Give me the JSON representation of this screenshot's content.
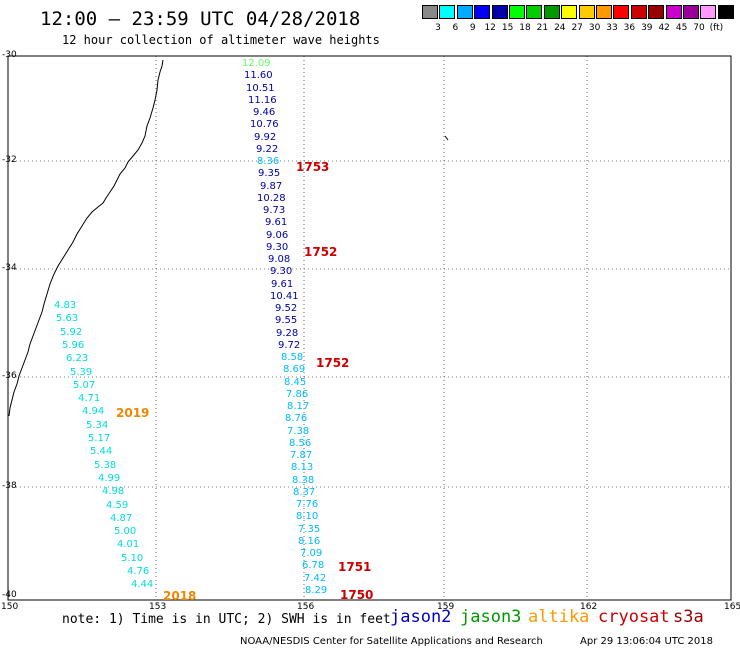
{
  "header": {
    "title": "12:00 – 23:59 UTC 04/28/2018",
    "subtitle": "12 hour collection of altimeter wave heights"
  },
  "legend": {
    "colors": [
      "#888888",
      "#00ffff",
      "#00aaff",
      "#0000ff",
      "#0000aa",
      "#00ff00",
      "#00cc00",
      "#009900",
      "#ffff00",
      "#ffcc00",
      "#ff9900",
      "#ff0000",
      "#cc0000",
      "#990000",
      "#cc00cc",
      "#990099",
      "#ff99ff",
      "#000000"
    ],
    "labels": [
      "3",
      "6",
      "9",
      "12",
      "15",
      "18",
      "21",
      "24",
      "27",
      "30",
      "33",
      "36",
      "39",
      "42",
      "45",
      "70",
      "(ft)"
    ]
  },
  "axes": {
    "lat_labels": [
      "-30",
      "-32",
      "-34",
      "-36",
      "-38",
      "-40"
    ],
    "lon_labels": [
      "150",
      "153",
      "156",
      "159",
      "162",
      "165"
    ]
  },
  "tracks": [
    {
      "satellite": "jason2/jason3 east track",
      "points": [
        {
          "v": "12.09",
          "c": "#66ff66"
        },
        {
          "v": "11.60",
          "c": "#0000aa"
        },
        {
          "v": "10.51",
          "c": "#0000aa"
        },
        {
          "v": "11.16",
          "c": "#0000aa"
        },
        {
          "v": "9.46",
          "c": "#0000aa"
        },
        {
          "v": "10.76",
          "c": "#0000aa"
        },
        {
          "v": "9.92",
          "c": "#0000aa"
        },
        {
          "v": "9.22",
          "c": "#0000aa"
        },
        {
          "v": "8.36",
          "c": "#00bbff"
        },
        {
          "v": "9.35",
          "c": "#0000aa"
        },
        {
          "v": "9.87",
          "c": "#0000aa"
        },
        {
          "v": "10.28",
          "c": "#0000aa"
        },
        {
          "v": "9.73",
          "c": "#0000aa"
        },
        {
          "v": "9.61",
          "c": "#0000aa"
        },
        {
          "v": "9.06",
          "c": "#0000aa"
        },
        {
          "v": "9.30",
          "c": "#0000aa"
        },
        {
          "v": "9.08",
          "c": "#0000aa"
        },
        {
          "v": "9.30",
          "c": "#0000aa"
        },
        {
          "v": "9.61",
          "c": "#0000aa"
        },
        {
          "v": "10.41",
          "c": "#0000aa"
        },
        {
          "v": "9.52",
          "c": "#0000aa"
        },
        {
          "v": "9.55",
          "c": "#0000aa"
        },
        {
          "v": "9.28",
          "c": "#0000aa"
        },
        {
          "v": "9.72",
          "c": "#0000aa"
        },
        {
          "v": "8.58",
          "c": "#00bbff"
        },
        {
          "v": "8.69",
          "c": "#00bbff"
        },
        {
          "v": "8.45",
          "c": "#00bbff"
        },
        {
          "v": "7.86",
          "c": "#00bbff"
        },
        {
          "v": "8.17",
          "c": "#00bbff"
        },
        {
          "v": "8.76",
          "c": "#00bbff"
        },
        {
          "v": "7.38",
          "c": "#00bbff"
        },
        {
          "v": "8.56",
          "c": "#00bbff"
        },
        {
          "v": "7.87",
          "c": "#00bbff"
        },
        {
          "v": "8.13",
          "c": "#00bbff"
        },
        {
          "v": "8.38",
          "c": "#00bbff"
        },
        {
          "v": "8.37",
          "c": "#00bbff"
        },
        {
          "v": "7.76",
          "c": "#00bbff"
        },
        {
          "v": "8.10",
          "c": "#00bbff"
        },
        {
          "v": "7.35",
          "c": "#00bbff"
        },
        {
          "v": "8.16",
          "c": "#00bbff"
        },
        {
          "v": "7.09",
          "c": "#00bbff"
        },
        {
          "v": "6.78",
          "c": "#00bbff"
        },
        {
          "v": "7.42",
          "c": "#00bbff"
        },
        {
          "v": "8.29",
          "c": "#00bbff"
        }
      ]
    },
    {
      "satellite": "altika west track",
      "points": [
        {
          "v": "4.83",
          "c": "#00dddd"
        },
        {
          "v": "5.63",
          "c": "#00dddd"
        },
        {
          "v": "5.92",
          "c": "#00dddd"
        },
        {
          "v": "5.96",
          "c": "#00dddd"
        },
        {
          "v": "6.23",
          "c": "#00dddd"
        },
        {
          "v": "5.39",
          "c": "#00dddd"
        },
        {
          "v": "5.07",
          "c": "#00dddd"
        },
        {
          "v": "4.71",
          "c": "#00dddd"
        },
        {
          "v": "4.94",
          "c": "#00dddd"
        },
        {
          "v": "5.34",
          "c": "#00dddd"
        },
        {
          "v": "5.17",
          "c": "#00dddd"
        },
        {
          "v": "5.44",
          "c": "#00dddd"
        },
        {
          "v": "5.38",
          "c": "#00dddd"
        },
        {
          "v": "4.99",
          "c": "#00dddd"
        },
        {
          "v": "4.98",
          "c": "#00dddd"
        },
        {
          "v": "4.59",
          "c": "#00dddd"
        },
        {
          "v": "4.87",
          "c": "#00dddd"
        },
        {
          "v": "5.00",
          "c": "#00dddd"
        },
        {
          "v": "4.01",
          "c": "#00dddd"
        },
        {
          "v": "5.10",
          "c": "#00dddd"
        },
        {
          "v": "4.76",
          "c": "#00dddd"
        },
        {
          "v": "4.44",
          "c": "#00dddd"
        }
      ]
    }
  ],
  "pass_times": [
    {
      "t": "1753",
      "c": "#cc0000"
    },
    {
      "t": "1752",
      "c": "#cc0000"
    },
    {
      "t": "1752",
      "c": "#cc0000"
    },
    {
      "t": "1751",
      "c": "#cc0000"
    },
    {
      "t": "1750",
      "c": "#cc0000"
    },
    {
      "t": "2019",
      "c": "#ee8800"
    },
    {
      "t": "2018",
      "c": "#ee8800"
    }
  ],
  "footer": {
    "note": "note: 1) Time is in UTC; 2) SWH is in feet",
    "satellites": [
      {
        "name": "jason2",
        "c": "#0000cc"
      },
      {
        "name": "jason3",
        "c": "#009900"
      },
      {
        "name": "altika",
        "c": "#ff9900"
      },
      {
        "name": "cryosat",
        "c": "#cc0000"
      },
      {
        "name": "s3a",
        "c": "#990000"
      }
    ],
    "credit": "NOAA/NESDIS Center for Satellite Applications and Research",
    "timestamp": "Apr 29 13:06:04 UTC 2018"
  }
}
